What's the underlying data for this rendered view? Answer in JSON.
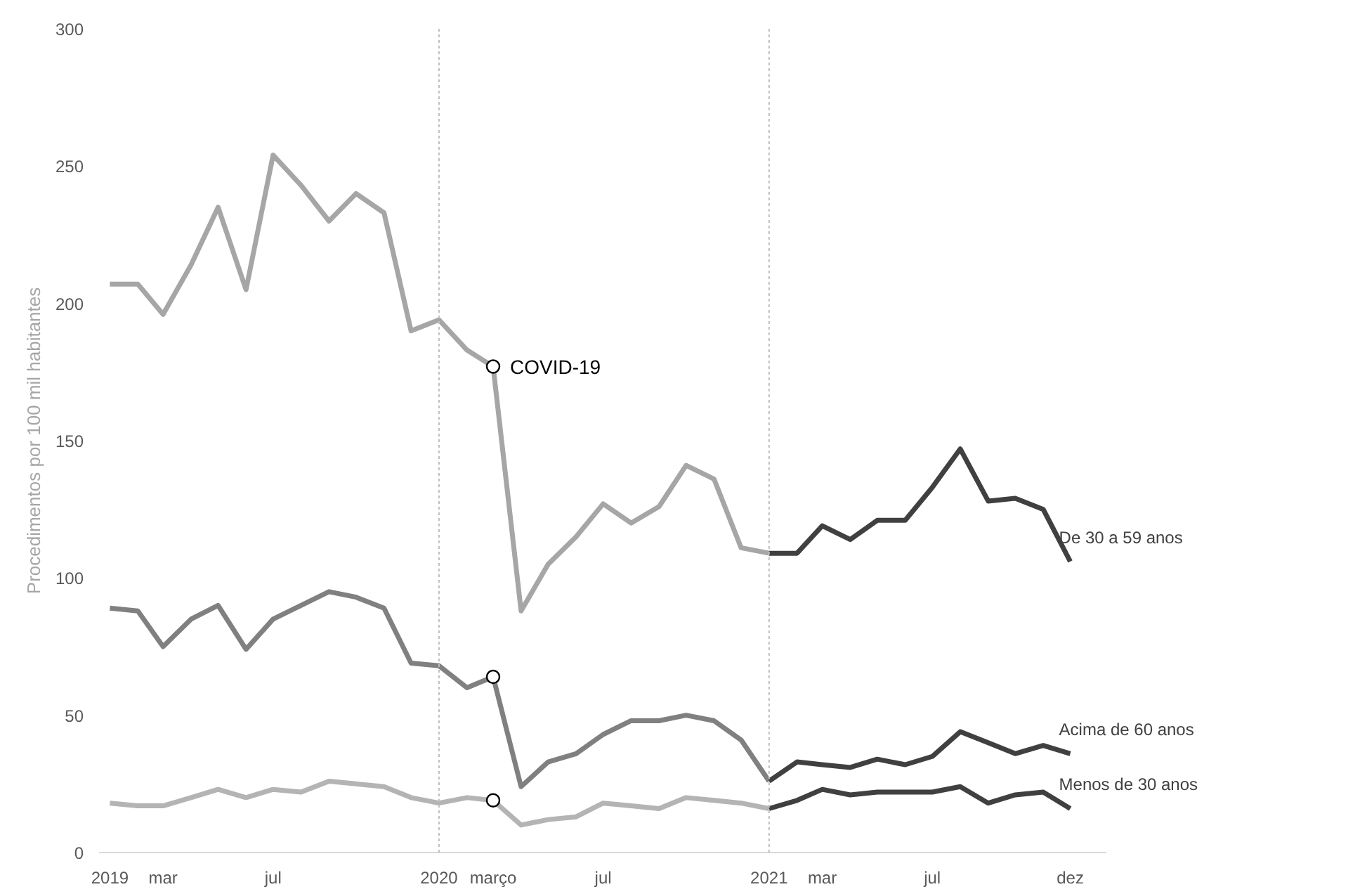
{
  "chart_data": {
    "type": "line",
    "ylabel": "Procedimentos por 100 mil habitantes",
    "x": [
      "2019-01",
      "2019-02",
      "2019-03",
      "2019-04",
      "2019-05",
      "2019-06",
      "2019-07",
      "2019-08",
      "2019-09",
      "2019-10",
      "2019-11",
      "2019-12",
      "2020-01",
      "2020-02",
      "2020-03",
      "2020-04",
      "2020-05",
      "2020-06",
      "2020-07",
      "2020-08",
      "2020-09",
      "2020-10",
      "2020-11",
      "2020-12",
      "2021-01"
    ],
    "series": [
      {
        "color": "#a6a6a6",
        "values": [
          207,
          207,
          196,
          214,
          235,
          205,
          254,
          243,
          230,
          240,
          233,
          190,
          194,
          183,
          177,
          88,
          105,
          115,
          127,
          120,
          126,
          141,
          136,
          111,
          109
        ]
      },
      {
        "color": "#808080",
        "values": [
          89,
          88,
          75,
          85,
          90,
          74,
          85,
          90,
          95,
          93,
          89,
          69,
          68,
          60,
          64,
          24,
          33,
          36,
          43,
          48,
          48,
          50,
          48,
          41,
          26
        ]
      },
      {
        "color": "#b4b4b4",
        "values": [
          18,
          17,
          17,
          20,
          23,
          20,
          23,
          22,
          26,
          25,
          24,
          20,
          18,
          20,
          19,
          10,
          12,
          13,
          18,
          17,
          16,
          20,
          19,
          18,
          16
        ]
      },
      {
        "name": "De 30 a 59 anos",
        "color": "#404040",
        "x": [
          "2021-01",
          "2021-02",
          "2021-03",
          "2021-04",
          "2021-05",
          "2021-06",
          "2021-07",
          "2021-08",
          "2021-09",
          "2021-10",
          "2021-11",
          "2021-12"
        ],
        "values": [
          109,
          109,
          119,
          114,
          121,
          121,
          133,
          147,
          128,
          129,
          125,
          106
        ]
      },
      {
        "name": "Acima de 60 anos",
        "color": "#404040",
        "x": [
          "2021-01",
          "2021-02",
          "2021-03",
          "2021-04",
          "2021-05",
          "2021-06",
          "2021-07",
          "2021-08",
          "2021-09",
          "2021-10",
          "2021-11",
          "2021-12"
        ],
        "values": [
          26,
          33,
          32,
          31,
          34,
          32,
          35,
          44,
          40,
          36,
          39,
          36
        ]
      },
      {
        "name": "Menos de 30 anos",
        "color": "#404040",
        "x": [
          "2021-01",
          "2021-02",
          "2021-03",
          "2021-04",
          "2021-05",
          "2021-06",
          "2021-07",
          "2021-08",
          "2021-09",
          "2021-10",
          "2021-11",
          "2021-12"
        ],
        "values": [
          16,
          19,
          23,
          21,
          22,
          22,
          22,
          24,
          18,
          21,
          22,
          16
        ]
      },
      {
        "type": "scatter",
        "marker": "circle",
        "color": "#ffffff",
        "x": [
          "2020-03",
          "2020-03",
          "2020-03"
        ],
        "values": [
          177,
          64,
          19
        ]
      }
    ],
    "annotations": [
      {
        "text": "COVID-19",
        "x": "2020-03",
        "y": 177
      }
    ],
    "ref_lines": [
      {
        "axis": "x",
        "value": "2020-01",
        "color": "#bfbfbf",
        "line_style": "dotted"
      },
      {
        "axis": "x",
        "value": "2021-01",
        "color": "#bfbfbf",
        "line_style": "dotted"
      }
    ],
    "xlim": [
      "2018-12-20",
      "2022-01-10"
    ],
    "xticks": [
      {
        "value": "2019-01",
        "label": "2019"
      },
      {
        "value": "2019-03",
        "label": "mar"
      },
      {
        "value": "2019-07",
        "label": "jul"
      },
      {
        "value": "2020-01",
        "label": "2020"
      },
      {
        "value": "2020-03",
        "label": "março"
      },
      {
        "value": "2020-07",
        "label": "jul"
      },
      {
        "value": "2021-01",
        "label": "2021"
      },
      {
        "value": "2021-03",
        "label": "mar"
      },
      {
        "value": "2021-07",
        "label": "jul"
      },
      {
        "value": "2021-12",
        "label": "dez"
      }
    ],
    "ylim": [
      0,
      300
    ],
    "yticks": [
      0,
      50,
      100,
      150,
      200,
      250,
      300
    ],
    "grid": false,
    "legend": false,
    "line_style": "solid",
    "marker": "none"
  }
}
